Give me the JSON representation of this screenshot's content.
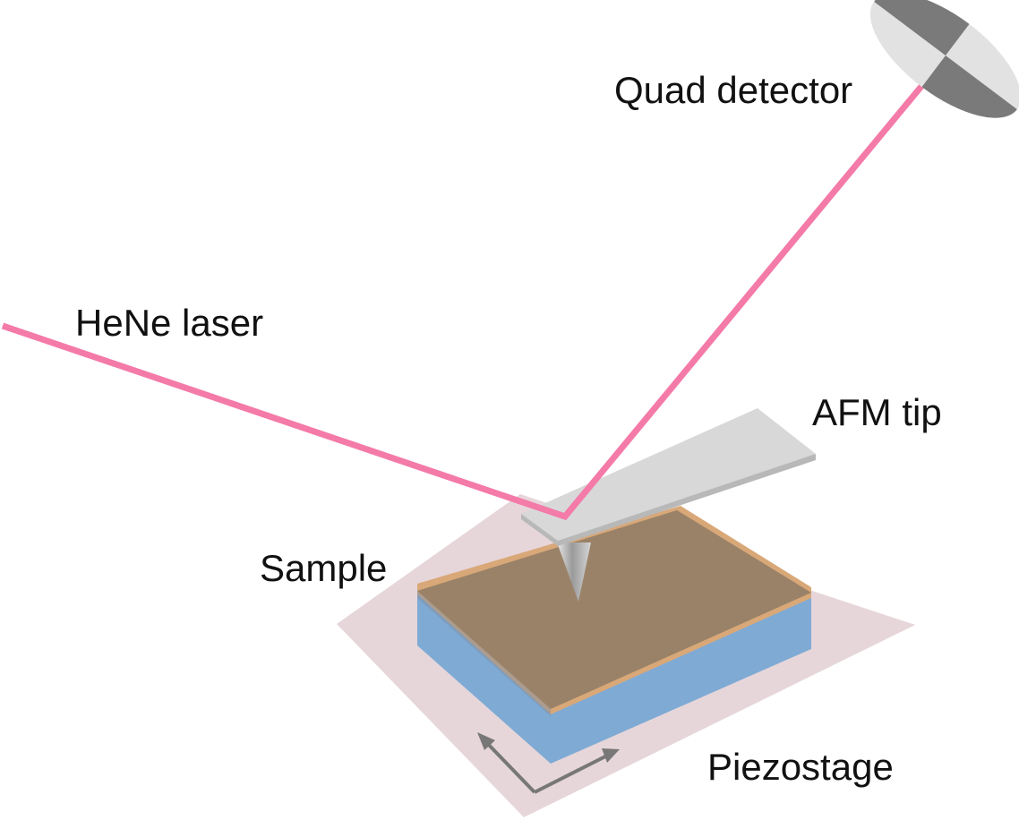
{
  "labels": {
    "quad_detector": "Quad detector",
    "hene_laser": "HeNe laser",
    "afm_tip": "AFM tip",
    "sample": "Sample",
    "piezostage": "Piezostage"
  },
  "colors": {
    "laser_beam": "#f47aa8",
    "piezostage": "#e6d6da",
    "sample_top": "#9a8268",
    "sample_edge": "#d9a878",
    "substrate": "#7faad4",
    "cantilever": "#d8d8d8",
    "detector_light": "#e2e2e2",
    "detector_dark": "#7a7a7a",
    "axis_arrows": "#777777"
  }
}
